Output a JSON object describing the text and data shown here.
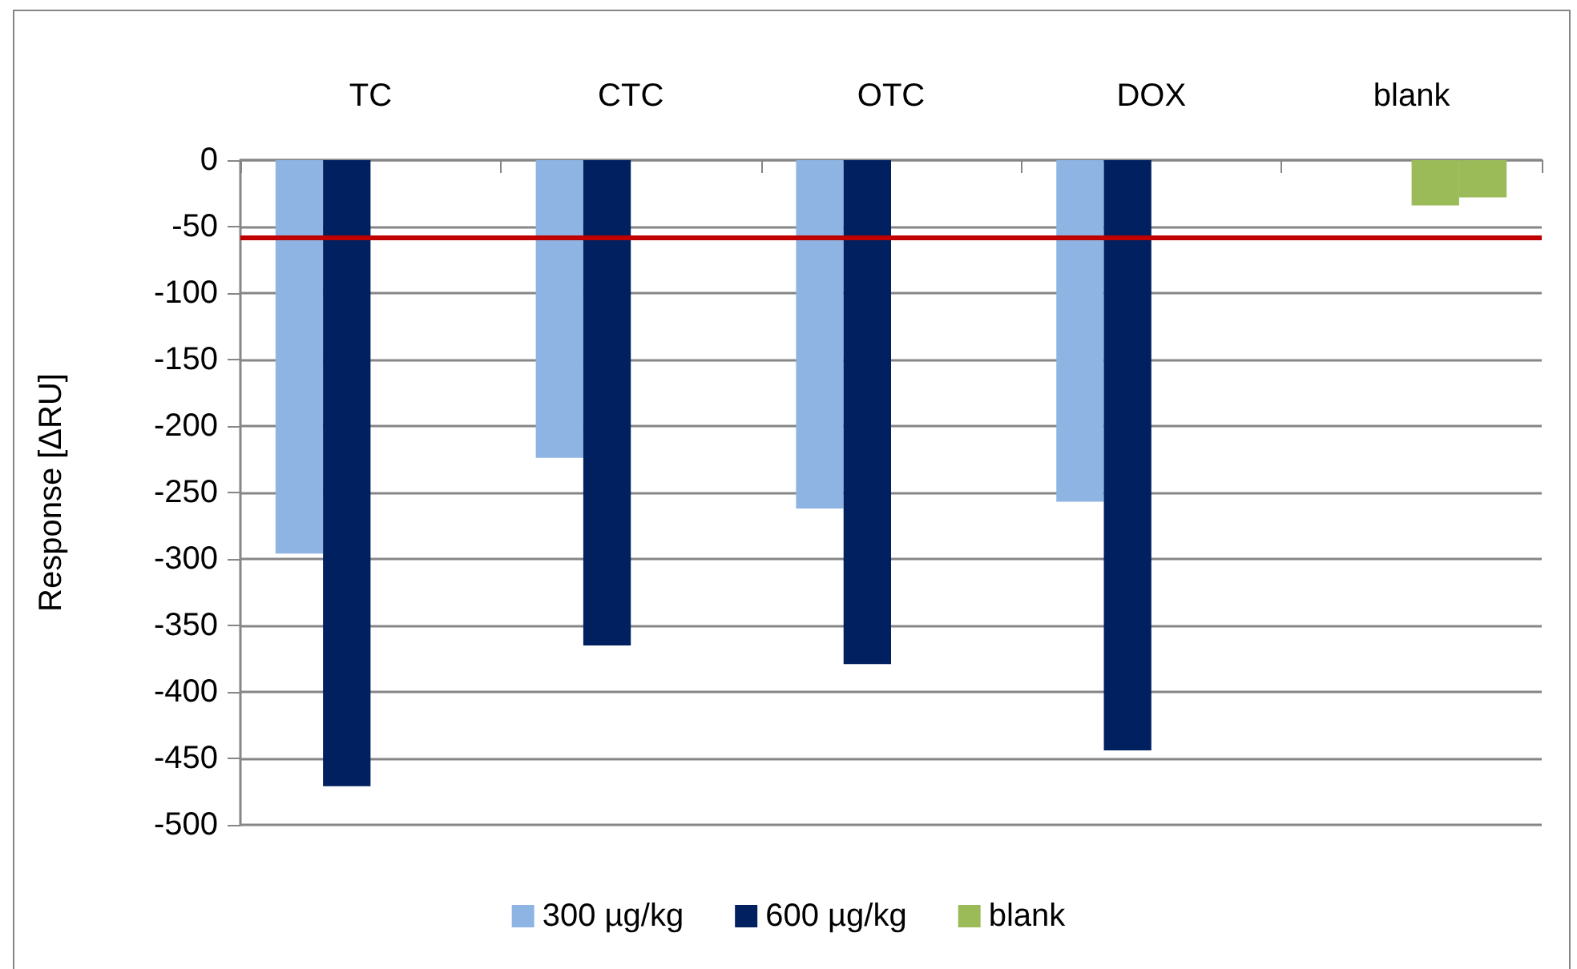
{
  "chart_data": {
    "type": "bar",
    "ylabel": "Response [ΔRU]",
    "categories": [
      "TC",
      "CTC",
      "OTC",
      "DOX",
      "blank"
    ],
    "series": [
      {
        "name": "300 µg/kg",
        "color": "#8eb4e3",
        "values": [
          -296,
          -224,
          -262,
          -257,
          null
        ]
      },
      {
        "name": "600 µg/kg",
        "color": "#002060",
        "values": [
          -471,
          -365,
          -379,
          -444,
          null
        ]
      },
      {
        "name": "blank",
        "color": "#9bbb59",
        "values": [
          null,
          null,
          null,
          null,
          -34
        ]
      },
      {
        "color": "#9bbb59",
        "values": [
          null,
          null,
          null,
          null,
          -28
        ]
      }
    ],
    "ylim": [
      -500,
      0
    ],
    "yticks": [
      -500,
      -450,
      -400,
      -350,
      -300,
      -250,
      -200,
      -150,
      -100,
      -50,
      0
    ],
    "grid": "y",
    "legend": "bottom",
    "ref_lines": [
      {
        "axis": "y",
        "value": -58,
        "color": "#c00000"
      }
    ]
  }
}
